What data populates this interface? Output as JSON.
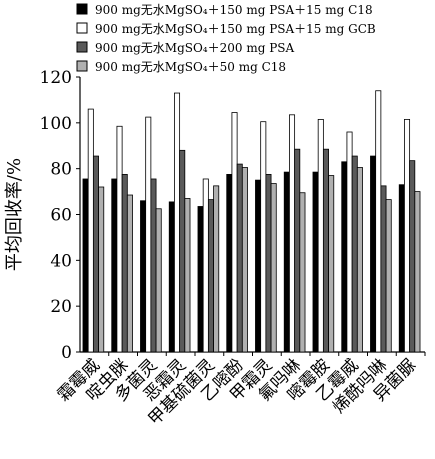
{
  "chart_data": {
    "type": "bar",
    "ylabel": "平均回收率/%",
    "ylim": [
      0,
      120
    ],
    "yticks": [
      0,
      20,
      40,
      60,
      80,
      100,
      120
    ],
    "categories": [
      "霜霉威",
      "啶虫脒",
      "多菌灵",
      "恶霜灵",
      "甲基硫菌灵",
      "乙嘧酚",
      "甲霜灵",
      "氟吗啉",
      "嘧霉胺",
      "乙霉威",
      "烯酰吗啉",
      "异菌脲"
    ],
    "series": [
      {
        "name": "900 mg无水MgSO₄＋150 mg PSA＋15 mg C18",
        "color": "#000000",
        "values": [
          75.5,
          75.5,
          66,
          65.5,
          63.5,
          77.5,
          75,
          78.5,
          78.5,
          83,
          85.5,
          73
        ]
      },
      {
        "name": "900 mg无水MgSO₄＋150 mg PSA＋15 mg GCB",
        "color": "#ffffff",
        "values": [
          106,
          98.5,
          102.5,
          113,
          75.5,
          104.5,
          100.5,
          103.5,
          101.5,
          96,
          114,
          101.5
        ]
      },
      {
        "name": "900 mg无水MgSO₄＋200 mg PSA",
        "color": "#5a5a5a",
        "values": [
          85.5,
          77.5,
          75.5,
          88,
          66.5,
          82,
          77.5,
          88.5,
          88.5,
          85.5,
          72.5,
          83.5
        ]
      },
      {
        "name": "900 mg无水MgSO₄＋50 mg C18",
        "color": "#b0b0b0",
        "values": [
          72,
          68.5,
          62.5,
          67,
          72.5,
          80.5,
          73.5,
          69.5,
          77,
          80.5,
          66.5,
          70
        ]
      }
    ]
  }
}
